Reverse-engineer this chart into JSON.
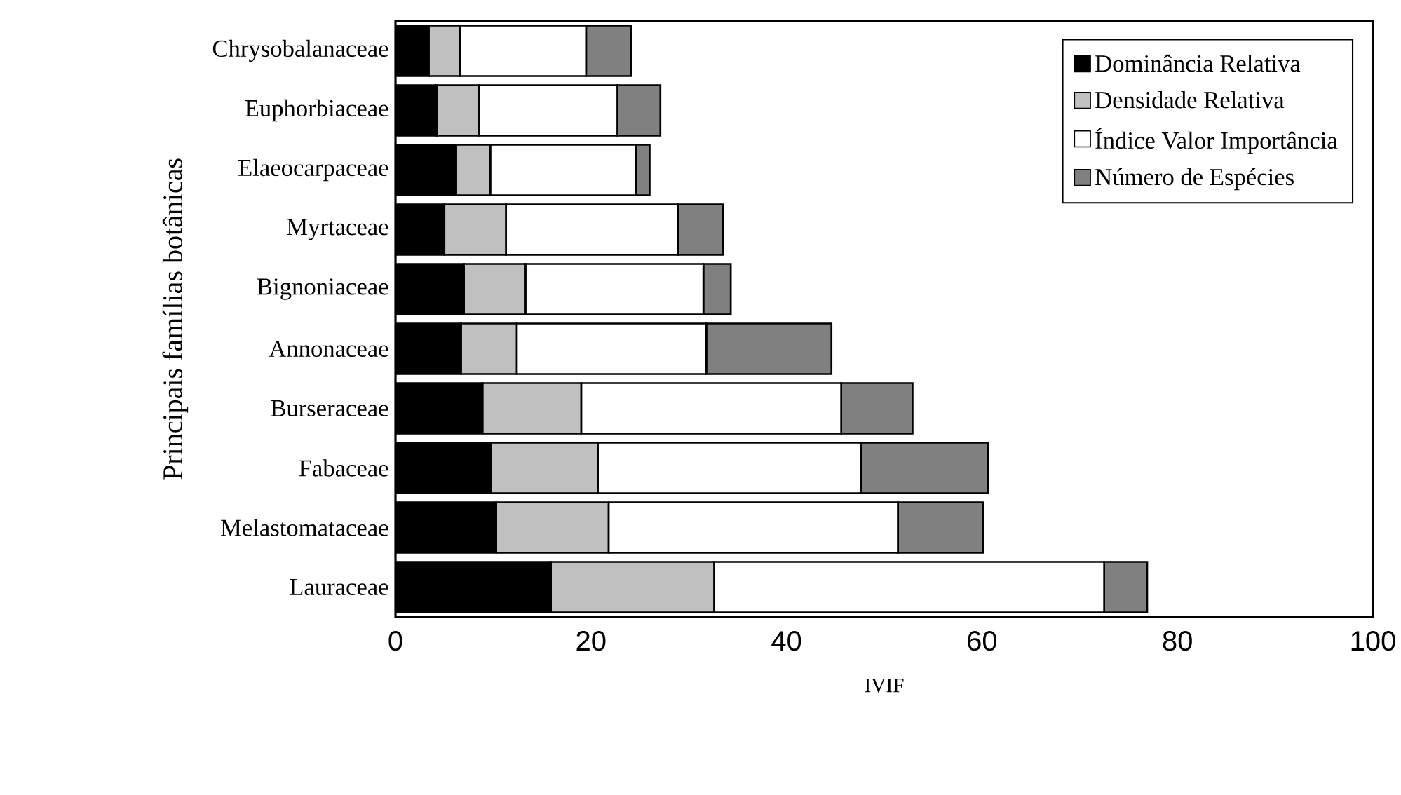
{
  "chart_data": {
    "type": "bar",
    "orientation": "horizontal",
    "stacked": true,
    "xlabel": "IVIF",
    "ylabel": "Principais famílias botânicas",
    "categories": [
      "Chrysobalanaceae",
      "Euphorbiaceae",
      "Elaeocarpaceae",
      "Myrtaceae",
      "Bignoniaceae",
      "Annonaceae",
      "Burseraceae",
      "Fabaceae",
      "Melastomataceae",
      "Lauraceae"
    ],
    "series": [
      {
        "name": "Dominância Relativa",
        "color": "#000000",
        "values": [
          3.4,
          4.2,
          6.2,
          5.0,
          7.0,
          6.7,
          8.9,
          9.8,
          10.3,
          15.9
        ]
      },
      {
        "name": "Densidade Relativa",
        "color": "#c0c0c0",
        "values": [
          3.2,
          4.3,
          3.5,
          6.3,
          6.3,
          5.7,
          10.1,
          10.9,
          11.5,
          16.7
        ]
      },
      {
        "name": "Índice Valor Importância",
        "color": "#ffffff",
        "values": [
          12.9,
          14.2,
          14.9,
          17.6,
          18.2,
          19.4,
          26.6,
          26.9,
          29.6,
          39.9
        ]
      },
      {
        "name": "Número de Espécies",
        "color": "#808080",
        "values": [
          4.6,
          4.4,
          1.4,
          4.6,
          2.8,
          12.8,
          7.3,
          13.0,
          8.7,
          4.4
        ]
      }
    ],
    "xlim": [
      0,
      100
    ],
    "xticks": [
      0,
      20,
      40,
      60,
      80,
      100
    ],
    "grid": false,
    "legend": "top right"
  }
}
